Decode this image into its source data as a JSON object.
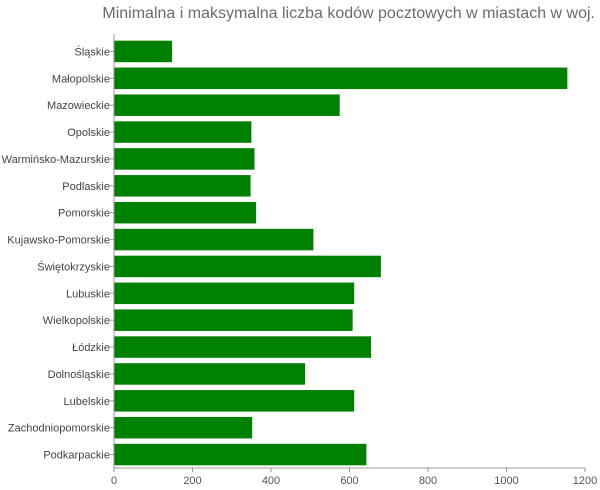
{
  "chart_data": {
    "type": "bar",
    "orientation": "horizontal",
    "title": "Minimalna i maksymalna liczba kodów pocztowych w miastach w woj.",
    "categories": [
      "Śląskie",
      "Małopolskie",
      "Mazowieckie",
      "Opolskie",
      "Warmińsko-Mazurskie",
      "Podlaskie",
      "Pomorskie",
      "Kujawsko-Pomorskie",
      "Świętokrzyskie",
      "Lubuskie",
      "Wielkopolskie",
      "Łódzkie",
      "Dolnośląskie",
      "Lubelskie",
      "Zachodniopomorskie",
      "Podkarpackie"
    ],
    "values": [
      148,
      1155,
      575,
      350,
      358,
      348,
      362,
      508,
      680,
      612,
      608,
      655,
      487,
      612,
      352,
      643
    ],
    "xlim": [
      0,
      1200
    ],
    "xticks": [
      0,
      200,
      400,
      600,
      800,
      1000,
      1200
    ],
    "xlabel": "",
    "ylabel": "",
    "grid": false,
    "bar_color": "#008000"
  }
}
